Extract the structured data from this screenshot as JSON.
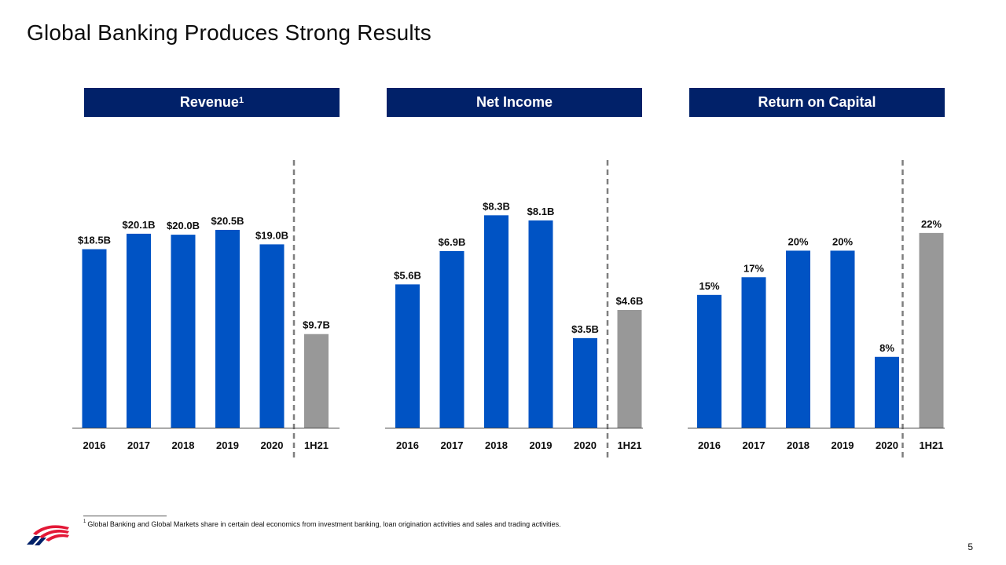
{
  "slide": {
    "title": "Global Banking Produces Strong Results",
    "page_number": "5",
    "footnote_marker": "1",
    "footnote": "Global Banking and Global Markets share in certain deal economics from investment banking, loan origination activities and sales and trading activities."
  },
  "colors": {
    "header_bg": "#012169",
    "bar_blue": "#0053C4",
    "bar_gray": "#989898",
    "divider": "#7f7f7f",
    "axis": "#444444",
    "logo_red": "#E31837",
    "logo_navy": "#012169"
  },
  "panels": [
    {
      "title": "Revenue",
      "superscript": "1"
    },
    {
      "title": "Net Income",
      "superscript": ""
    },
    {
      "title": "Return on Capital",
      "superscript": ""
    }
  ],
  "chart_data": [
    {
      "type": "bar",
      "title": "Revenue",
      "unit": "$B",
      "categories": [
        "2016",
        "2017",
        "2018",
        "2019",
        "2020",
        "1H21"
      ],
      "values": [
        18.5,
        20.1,
        20.0,
        20.5,
        19.0,
        9.7
      ],
      "labels": [
        "$18.5B",
        "$20.1B",
        "$20.0B",
        "$20.5B",
        "$19.0B",
        "$9.7B"
      ],
      "highlight_index": 5,
      "ylim": [
        0,
        24.4
      ]
    },
    {
      "type": "bar",
      "title": "Net Income",
      "unit": "$B",
      "categories": [
        "2016",
        "2017",
        "2018",
        "2019",
        "2020",
        "1H21"
      ],
      "values": [
        5.6,
        6.9,
        8.3,
        8.1,
        3.5,
        4.6
      ],
      "labels": [
        "$5.6B",
        "$6.9B",
        "$8.3B",
        "$8.1B",
        "$3.5B",
        "$4.6B"
      ],
      "highlight_index": 5,
      "ylim": [
        0,
        9.2
      ]
    },
    {
      "type": "bar",
      "title": "Return on Capital",
      "unit": "%",
      "categories": [
        "2016",
        "2017",
        "2018",
        "2019",
        "2020",
        "1H21"
      ],
      "values": [
        15,
        17,
        20,
        20,
        8,
        22
      ],
      "labels": [
        "15%",
        "17%",
        "20%",
        "20%",
        "8%",
        "22%"
      ],
      "highlight_index": 5,
      "ylim": [
        0,
        26.6
      ]
    }
  ]
}
